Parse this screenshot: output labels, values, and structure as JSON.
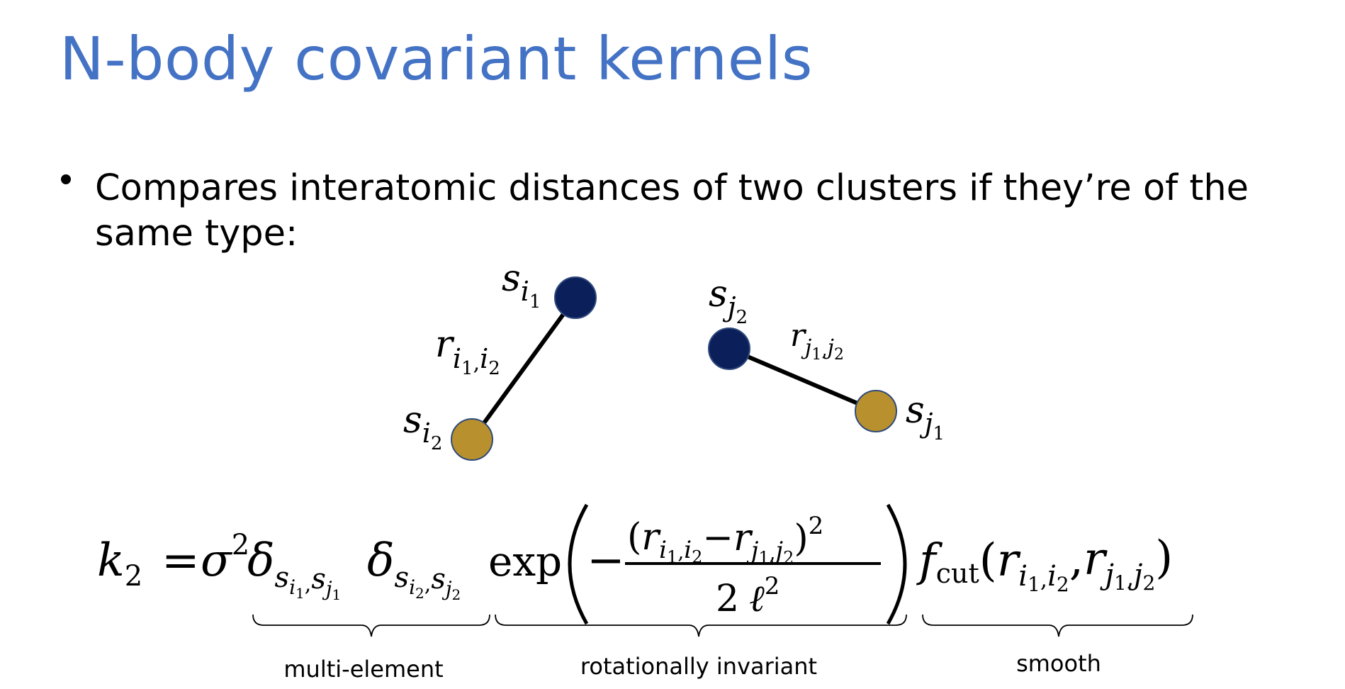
{
  "slide": {
    "title": "N-body covariant kernels",
    "bullet": "Compares interatomic distances of two clusters if they’re of the same type:"
  },
  "diagram": {
    "atom_colors": {
      "dark": "#0B1F5B",
      "gold": "#B8912E"
    },
    "left_cluster": {
      "top_atom_label": "s",
      "top_atom_sub": "i",
      "top_atom_subsub": "1",
      "bottom_atom_label": "s",
      "bottom_atom_sub": "i",
      "bottom_atom_subsub": "2",
      "bond_label": "r",
      "bond_sub_a": "i",
      "bond_subsub_a": "1",
      "bond_sep": ",",
      "bond_sub_b": "i",
      "bond_subsub_b": "2"
    },
    "right_cluster": {
      "top_atom_label": "s",
      "top_atom_sub": "j",
      "top_atom_subsub": "2",
      "bottom_atom_label": "s",
      "bottom_atom_sub": "j",
      "bottom_atom_subsub": "1",
      "bond_label": "r",
      "bond_sub_a": "j",
      "bond_subsub_a": "1",
      "bond_sep": ",",
      "bond_sub_b": "j",
      "bond_subsub_b": "2"
    }
  },
  "equation": {
    "lhs": "k",
    "lhs_sub": "2",
    "equals": "=",
    "sigma": "σ",
    "sigma_exp": "2",
    "delta": "δ",
    "s": "s",
    "i": "i",
    "j": "j",
    "one": "1",
    "two": "2",
    "comma": ",",
    "exp": "exp",
    "minus": "−",
    "numerator_open": "(",
    "numerator_close": ")",
    "r": "r",
    "denominator_two": "2",
    "ell": "ℓ",
    "f": "f",
    "cut": "cut",
    "lparen": "(",
    "rparen": ")"
  },
  "braces": {
    "multi_element": "multi-element",
    "rotationally_invariant": "rotationally invariant",
    "smooth": "smooth"
  }
}
